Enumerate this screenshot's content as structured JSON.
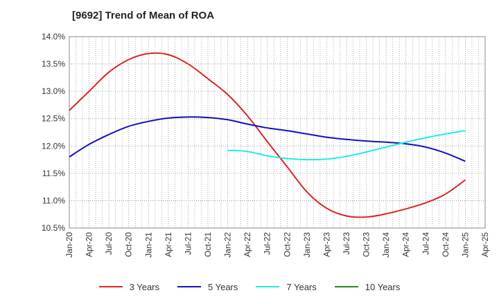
{
  "chart_data": {
    "type": "line",
    "title": "[9692]  Trend of Mean of ROA",
    "xlabel": "",
    "ylabel": "",
    "x": [
      "Jan-20",
      "Apr-20",
      "Jul-20",
      "Oct-20",
      "Jan-21",
      "Apr-21",
      "Jul-21",
      "Oct-21",
      "Jan-22",
      "Apr-22",
      "Jul-22",
      "Oct-22",
      "Jan-23",
      "Apr-23",
      "Jul-23",
      "Oct-23",
      "Jan-24",
      "Apr-24",
      "Jul-24",
      "Oct-24",
      "Jan-25",
      "Apr-25"
    ],
    "ylim": [
      10.5,
      14.0
    ],
    "yticks": [
      "14.0%",
      "13.5%",
      "13.0%",
      "12.5%",
      "12.0%",
      "11.5%",
      "11.0%",
      "10.5%"
    ],
    "grid": true,
    "legend_position": "bottom",
    "series": [
      {
        "name": "3 Years",
        "color": "#dd2222",
        "values": [
          12.65,
          13.0,
          13.35,
          13.58,
          13.69,
          13.67,
          13.5,
          13.23,
          12.94,
          12.55,
          12.08,
          11.62,
          11.16,
          10.86,
          10.72,
          10.7,
          10.76,
          10.85,
          10.96,
          11.12,
          11.38,
          null
        ]
      },
      {
        "name": "5 Years",
        "color": "#1111bb",
        "values": [
          11.8,
          12.03,
          12.21,
          12.36,
          12.45,
          12.51,
          12.53,
          12.52,
          12.48,
          12.4,
          12.33,
          12.28,
          12.22,
          12.16,
          12.12,
          12.09,
          12.07,
          12.04,
          11.98,
          11.87,
          11.72,
          null
        ]
      },
      {
        "name": "7 Years",
        "color": "#22e8ee",
        "values": [
          null,
          null,
          null,
          null,
          null,
          null,
          null,
          null,
          11.92,
          11.9,
          11.82,
          11.77,
          11.75,
          11.76,
          11.81,
          11.89,
          11.98,
          12.07,
          12.15,
          12.22,
          12.28,
          null
        ]
      },
      {
        "name": "10 Years",
        "color": "#228822",
        "values": [
          null,
          null,
          null,
          null,
          null,
          null,
          null,
          null,
          null,
          null,
          null,
          null,
          null,
          null,
          null,
          null,
          null,
          null,
          null,
          null,
          null,
          null
        ]
      }
    ]
  }
}
